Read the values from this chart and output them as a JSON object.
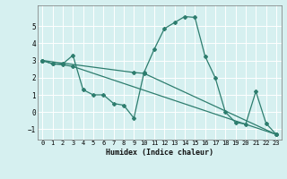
{
  "xlabel": "Humidex (Indice chaleur)",
  "ylabel": "",
  "bg_color": "#d6f0f0",
  "line_color": "#2d7d6e",
  "grid_color": "#ffffff",
  "xlim": [
    -0.5,
    23.5
  ],
  "ylim": [
    -1.6,
    6.2
  ],
  "yticks": [
    -1,
    0,
    1,
    2,
    3,
    4,
    5
  ],
  "xticks": [
    0,
    1,
    2,
    3,
    4,
    5,
    6,
    7,
    8,
    9,
    10,
    11,
    12,
    13,
    14,
    15,
    16,
    17,
    18,
    19,
    20,
    21,
    22,
    23
  ],
  "line1_x": [
    0,
    1,
    2,
    3,
    4,
    5,
    6,
    7,
    8,
    9,
    10,
    11,
    12,
    13,
    14,
    15,
    16,
    17,
    18,
    19,
    20,
    21,
    22,
    23
  ],
  "line1_y": [
    3.0,
    2.8,
    2.8,
    3.3,
    1.3,
    1.0,
    1.0,
    0.5,
    0.4,
    -0.35,
    2.3,
    3.65,
    4.85,
    5.2,
    5.55,
    5.5,
    3.25,
    2.0,
    0.0,
    -0.6,
    -0.7,
    1.2,
    -0.65,
    -1.3
  ],
  "line2_x": [
    0,
    1,
    2,
    3,
    23
  ],
  "line2_y": [
    3.0,
    2.8,
    2.75,
    2.65,
    -1.3
  ],
  "line3_x": [
    0,
    9,
    10,
    23
  ],
  "line3_y": [
    3.0,
    2.3,
    2.25,
    -1.3
  ]
}
